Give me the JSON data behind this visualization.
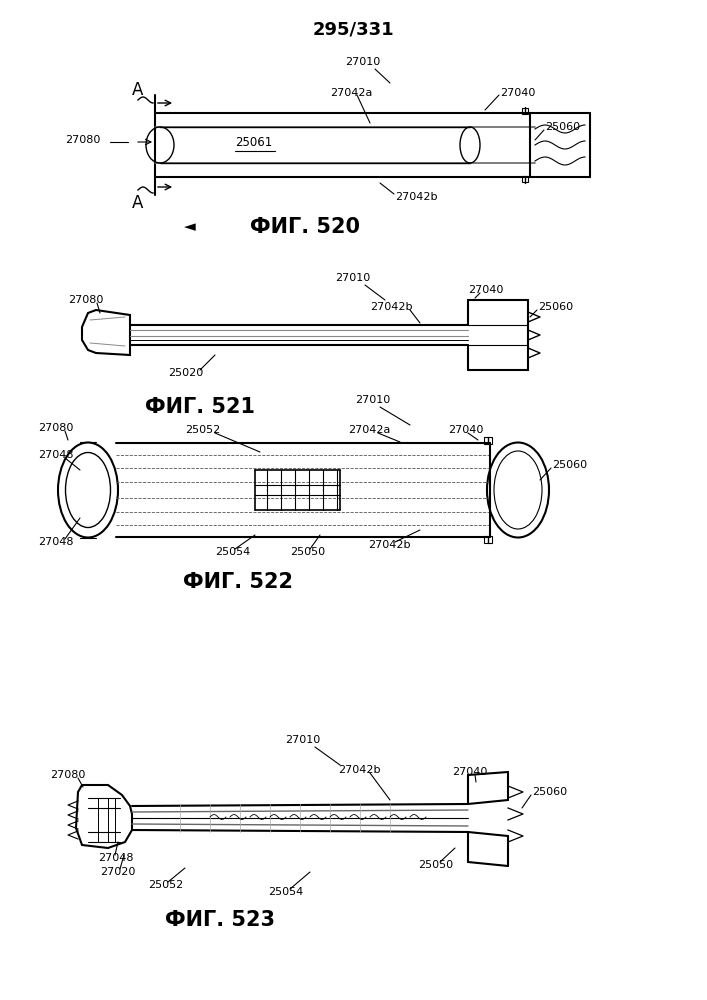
{
  "title": "295/331",
  "title_fontsize": 13,
  "title_fontweight": "bold",
  "bg_color": "#ffffff",
  "fig_labels": [
    "ФИГ. 520",
    "ФИГ. 521",
    "ФИГ. 522",
    "ФИГ. 523"
  ],
  "label_fontsize": 15,
  "ref_fontsize": 8,
  "line_color": "#000000"
}
